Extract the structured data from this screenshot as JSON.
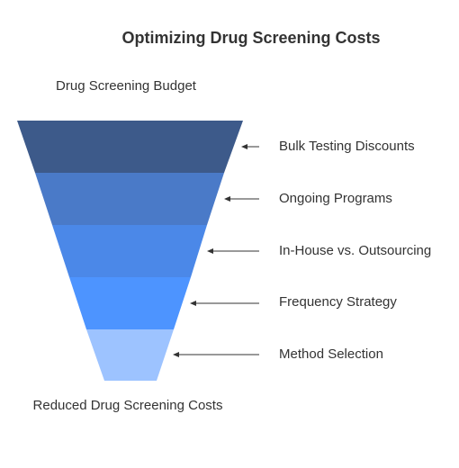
{
  "title": "Optimizing Drug Screening Costs",
  "top_label": "Drug Screening Budget",
  "bottom_label": "Reduced Drug Screening Costs",
  "stages": [
    {
      "label": "Bulk Testing Discounts",
      "color": "#3d5a8a"
    },
    {
      "label": "Ongoing Programs",
      "color": "#4a7ac8"
    },
    {
      "label": "In-House vs. Outsourcing",
      "color": "#4b88e8"
    },
    {
      "label": "Frequency Strategy",
      "color": "#4d94ff"
    },
    {
      "label": "Method Selection",
      "color": "#9dc3ff"
    }
  ],
  "arrow_color": "#333333"
}
